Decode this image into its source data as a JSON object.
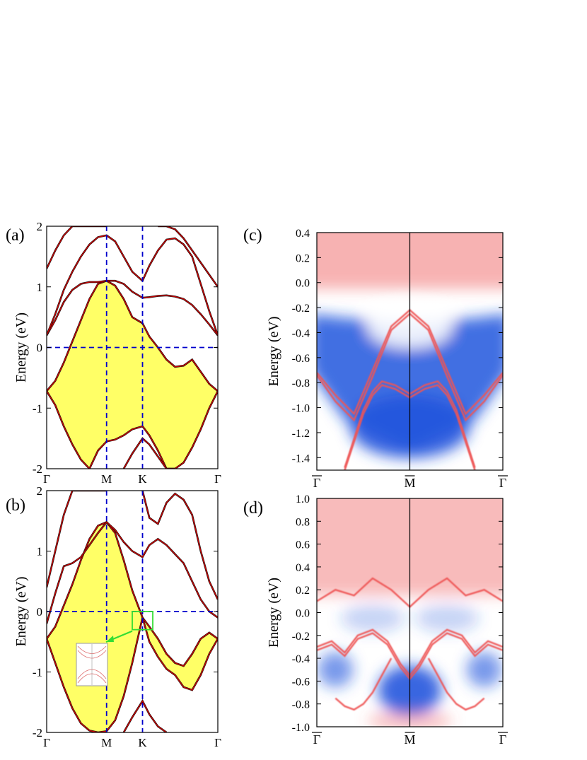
{
  "chart_data": [
    {
      "panel": "(a)",
      "type": "line",
      "ylabel": "Energy (eV)",
      "ylim": [
        -2,
        2
      ],
      "yticks": [
        "-2",
        "-1",
        "0",
        "1",
        "2"
      ],
      "kpoints": [
        "Γ",
        "M",
        "K",
        "Γ"
      ],
      "kpos": [
        0,
        0.35,
        0.56,
        1.0
      ],
      "fill_color": "#ffff66",
      "band_color": "#cc0000",
      "guide_color": "#0000cc",
      "filled_region": {
        "x": [
          0,
          0.05,
          0.1,
          0.15,
          0.2,
          0.25,
          0.3,
          0.35,
          0.4,
          0.45,
          0.5,
          0.56,
          0.6,
          0.65,
          0.7,
          0.75,
          0.8,
          0.85,
          0.9,
          0.95,
          1.0
        ],
        "upper": [
          -0.72,
          -0.55,
          -0.25,
          0.1,
          0.45,
          0.8,
          1.05,
          1.1,
          1.02,
          0.8,
          0.5,
          0.4,
          0.18,
          0.0,
          -0.2,
          -0.32,
          -0.3,
          -0.2,
          -0.4,
          -0.6,
          -0.72
        ],
        "lower": [
          -0.72,
          -0.95,
          -1.3,
          -1.6,
          -1.85,
          -2.0,
          -1.7,
          -1.55,
          -1.52,
          -1.45,
          -1.35,
          -1.3,
          -1.45,
          -1.7,
          -2.0,
          -2.0,
          -1.9,
          -1.65,
          -1.35,
          -1.0,
          -0.72
        ]
      },
      "bands": [
        {
          "x": [
            0,
            0.05,
            0.1,
            0.15,
            0.2,
            0.25,
            0.3,
            0.35,
            0.4,
            0.45,
            0.5,
            0.56,
            0.6,
            0.65,
            0.7,
            0.75,
            0.8,
            0.85,
            0.9,
            0.95,
            1.0
          ],
          "y": [
            0.2,
            0.45,
            0.75,
            0.95,
            1.05,
            1.08,
            1.08,
            1.1,
            1.1,
            1.05,
            0.92,
            0.82,
            0.83,
            0.85,
            0.86,
            0.84,
            0.8,
            0.7,
            0.55,
            0.38,
            0.2
          ]
        },
        {
          "x": [
            0,
            0.05,
            0.1,
            0.15,
            0.2,
            0.25,
            0.3,
            0.35,
            0.4,
            0.45,
            0.5,
            0.56,
            0.6,
            0.65,
            0.7,
            0.75,
            0.8,
            0.85,
            0.9,
            0.95,
            1.0
          ],
          "y": [
            0.2,
            0.55,
            0.95,
            1.25,
            1.5,
            1.7,
            1.82,
            1.85,
            1.75,
            1.5,
            1.25,
            1.1,
            1.35,
            1.6,
            1.78,
            1.8,
            1.7,
            1.5,
            1.05,
            0.6,
            0.2
          ]
        },
        {
          "x": [
            0,
            0.05,
            0.1,
            0.15,
            0.2,
            0.25,
            0.3,
            0.35
          ],
          "y": [
            1.3,
            1.6,
            1.85,
            2.0,
            2.0,
            2.0,
            2.0,
            2.0
          ]
        },
        {
          "x": [
            0.65,
            0.7,
            0.75,
            0.8,
            0.85,
            0.9,
            0.95,
            1.0
          ],
          "y": [
            2.0,
            2.0,
            1.95,
            1.8,
            1.6,
            1.4,
            1.2,
            1.0
          ]
        },
        {
          "x": [
            0.45,
            0.5,
            0.56,
            0.6,
            0.65,
            0.7,
            0.75
          ],
          "y": [
            -2.0,
            -1.75,
            -1.5,
            -1.6,
            -1.8,
            -2.0,
            -2.0
          ]
        }
      ]
    },
    {
      "panel": "(b)",
      "type": "line",
      "ylabel": "Energy (eV)",
      "ylim": [
        -2,
        2
      ],
      "yticks": [
        "-2",
        "-1",
        "0",
        "1",
        "2"
      ],
      "kpoints": [
        "Γ",
        "M",
        "K",
        "Γ"
      ],
      "kpos": [
        0,
        0.35,
        0.56,
        1.0
      ],
      "fill_color": "#ffff66",
      "band_color": "#cc0000",
      "guide_color": "#0000cc",
      "filled_region": {
        "x": [
          0,
          0.05,
          0.1,
          0.15,
          0.2,
          0.25,
          0.3,
          0.35,
          0.4,
          0.45,
          0.5,
          0.56,
          0.6,
          0.65,
          0.7,
          0.75,
          0.8,
          0.85,
          0.9,
          0.95,
          1.0
        ],
        "upper": [
          -0.45,
          -0.25,
          0.1,
          0.45,
          0.85,
          1.2,
          1.42,
          1.48,
          1.3,
          0.85,
          0.35,
          -0.1,
          -0.25,
          -0.45,
          -0.7,
          -0.85,
          -0.9,
          -0.7,
          -0.45,
          -0.35,
          -0.45
        ],
        "lower": [
          -0.45,
          -0.85,
          -1.25,
          -1.6,
          -1.85,
          -1.97,
          -2.0,
          -1.98,
          -1.8,
          -1.4,
          -0.85,
          -0.1,
          -0.5,
          -0.75,
          -0.95,
          -1.05,
          -1.25,
          -1.3,
          -1.05,
          -0.7,
          -0.45
        ]
      },
      "inset_box": {
        "x": [
          0.5,
          0.62
        ],
        "y": [
          -0.3,
          0.0
        ]
      },
      "bands": [
        {
          "x": [
            0,
            0.05,
            0.1,
            0.15,
            0.2,
            0.25,
            0.3,
            0.35,
            0.4,
            0.45,
            0.5,
            0.56,
            0.6,
            0.65,
            0.7,
            0.75,
            0.8,
            0.85,
            0.9,
            0.95,
            1.0
          ],
          "y": [
            -0.2,
            0.3,
            0.75,
            0.8,
            0.9,
            1.1,
            1.3,
            1.48,
            1.35,
            1.15,
            1.0,
            0.9,
            1.1,
            1.2,
            1.1,
            0.95,
            0.8,
            0.5,
            0.2,
            0.0,
            -0.1
          ]
        },
        {
          "x": [
            0,
            0.05,
            0.1,
            0.15,
            0.2,
            0.25,
            0.3,
            0.35
          ],
          "y": [
            0.4,
            1.0,
            1.6,
            2.0,
            2.0,
            2.0,
            2.0,
            2.0
          ]
        },
        {
          "x": [
            0.56,
            0.6,
            0.65,
            0.7,
            0.75,
            0.8,
            0.85,
            0.9,
            0.95,
            1.0
          ],
          "y": [
            2.0,
            1.55,
            1.45,
            1.8,
            1.95,
            1.85,
            1.6,
            1.0,
            0.5,
            0.2
          ]
        },
        {
          "x": [
            0.45,
            0.5,
            0.56,
            0.6,
            0.65,
            0.7
          ],
          "y": [
            -2.0,
            -1.75,
            -1.48,
            -1.7,
            -1.9,
            -2.0
          ]
        }
      ]
    },
    {
      "panel": "(c)",
      "type": "heatmap",
      "ylabel": "Energy (eV)",
      "ylim": [
        -1.5,
        0.4
      ],
      "yticks": [
        "-1.4",
        "-1.2",
        "-1.0",
        "-0.8",
        "-0.6",
        "-0.4",
        "-0.2",
        "0.0",
        "0.2",
        "0.4"
      ],
      "kpoints": [
        "Γ",
        "M",
        "Γ"
      ],
      "kpos": [
        0,
        0.5,
        1.0
      ],
      "colormap": [
        "#2255dd",
        "#ffffff",
        "#ee5555"
      ],
      "surface_states": [
        {
          "x": [
            0,
            0.1,
            0.2,
            0.3,
            0.4,
            0.5,
            0.6,
            0.7,
            0.8,
            0.9,
            1.0
          ],
          "y": [
            -0.72,
            -0.9,
            -1.05,
            -0.7,
            -0.35,
            -0.22,
            -0.35,
            -0.7,
            -1.05,
            -0.9,
            -0.72
          ]
        },
        {
          "x": [
            0,
            0.1,
            0.2,
            0.3,
            0.4,
            0.5,
            0.6,
            0.7,
            0.8,
            0.9,
            1.0
          ],
          "y": [
            -0.74,
            -0.95,
            -1.1,
            -0.75,
            -0.38,
            -0.25,
            -0.38,
            -0.75,
            -1.1,
            -0.95,
            -0.74
          ]
        },
        {
          "x": [
            0.15,
            0.25,
            0.3,
            0.35,
            0.42,
            0.5,
            0.58,
            0.65,
            0.7,
            0.75,
            0.85
          ],
          "y": [
            -1.5,
            -1.05,
            -0.9,
            -0.82,
            -0.85,
            -0.92,
            -0.85,
            -0.82,
            -0.9,
            -1.05,
            -1.5
          ]
        },
        {
          "x": [
            0.15,
            0.25,
            0.3,
            0.35,
            0.42,
            0.5,
            0.58,
            0.65,
            0.7,
            0.75,
            0.85
          ],
          "y": [
            -1.48,
            -1.02,
            -0.87,
            -0.79,
            -0.82,
            -0.89,
            -0.82,
            -0.79,
            -0.87,
            -1.02,
            -1.48
          ]
        }
      ]
    },
    {
      "panel": "(d)",
      "type": "heatmap",
      "ylabel": "Energy (eV)",
      "ylim": [
        -1.0,
        1.0
      ],
      "yticks": [
        "-1.0",
        "-0.8",
        "-0.6",
        "-0.4",
        "-0.2",
        "0.0",
        "0.2",
        "0.4",
        "0.6",
        "0.8",
        "1.0"
      ],
      "kpoints": [
        "Γ",
        "M",
        "Γ"
      ],
      "kpos": [
        0,
        0.5,
        1.0
      ],
      "colormap": [
        "#2255dd",
        "#ffffff",
        "#ee5555"
      ],
      "surface_states": [
        {
          "x": [
            0,
            0.08,
            0.15,
            0.22,
            0.3,
            0.38,
            0.45,
            0.5,
            0.55,
            0.62,
            0.7,
            0.78,
            0.85,
            0.92,
            1.0
          ],
          "y": [
            -0.3,
            -0.25,
            -0.35,
            -0.2,
            -0.15,
            -0.25,
            -0.45,
            -0.55,
            -0.45,
            -0.25,
            -0.15,
            -0.2,
            -0.35,
            -0.25,
            -0.3
          ]
        },
        {
          "x": [
            0,
            0.08,
            0.15,
            0.22,
            0.3,
            0.38,
            0.45,
            0.5,
            0.55,
            0.62,
            0.7,
            0.78,
            0.85,
            0.92,
            1.0
          ],
          "y": [
            -0.33,
            -0.28,
            -0.38,
            -0.23,
            -0.18,
            -0.28,
            -0.48,
            -0.58,
            -0.48,
            -0.28,
            -0.18,
            -0.23,
            -0.38,
            -0.28,
            -0.33
          ]
        },
        {
          "x": [
            0.1,
            0.15,
            0.2,
            0.25,
            0.3,
            0.35,
            0.4
          ],
          "y": [
            -0.75,
            -0.82,
            -0.85,
            -0.8,
            -0.7,
            -0.55,
            -0.4
          ]
        },
        {
          "x": [
            0.6,
            0.65,
            0.7,
            0.75,
            0.8,
            0.85,
            0.9
          ],
          "y": [
            -0.4,
            -0.55,
            -0.7,
            -0.8,
            -0.85,
            -0.82,
            -0.75
          ]
        },
        {
          "x": [
            0,
            0.1,
            0.2,
            0.3,
            0.4,
            0.5,
            0.6,
            0.7,
            0.8,
            0.9,
            1.0
          ],
          "y": [
            0.1,
            0.2,
            0.15,
            0.3,
            0.2,
            0.05,
            0.2,
            0.3,
            0.15,
            0.2,
            0.1
          ]
        }
      ]
    }
  ],
  "panel_labels": [
    "(a)",
    "(b)",
    "(c)",
    "(d)"
  ]
}
